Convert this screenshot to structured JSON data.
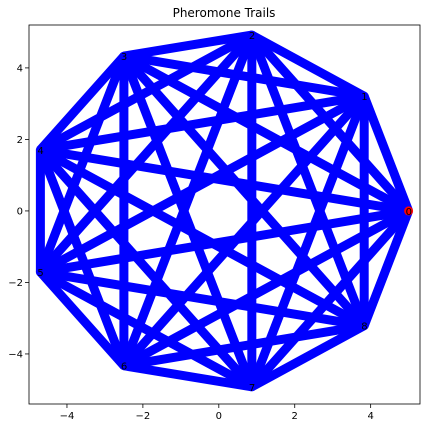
{
  "chart_data": {
    "type": "graph",
    "title": "Pheromone Trails",
    "xlabel": "",
    "ylabel": "",
    "xlim": [
      -5.0,
      5.3
    ],
    "ylim": [
      -5.4,
      5.2
    ],
    "xticks": [
      -4,
      -2,
      0,
      2,
      4
    ],
    "yticks": [
      -4,
      -2,
      0,
      2,
      4
    ],
    "xtick_labels": [
      "−4",
      "−2",
      "0",
      "2",
      "4"
    ],
    "ytick_labels": [
      "−4",
      "−2",
      "0",
      "2",
      "4"
    ],
    "grid": false,
    "edge_color": "#0000ff",
    "start_node_color": "#ff0000",
    "nodes": [
      {
        "label": "0",
        "x": 5.0,
        "y": 0.0
      },
      {
        "label": "1",
        "x": 3.83,
        "y": 3.21
      },
      {
        "label": "2",
        "x": 0.87,
        "y": 4.92
      },
      {
        "label": "3",
        "x": -2.5,
        "y": 4.33
      },
      {
        "label": "4",
        "x": -4.7,
        "y": 1.71
      },
      {
        "label": "5",
        "x": -4.7,
        "y": -1.71
      },
      {
        "label": "6",
        "x": -2.5,
        "y": -4.33
      },
      {
        "label": "7",
        "x": 0.87,
        "y": -4.92
      },
      {
        "label": "8",
        "x": 3.83,
        "y": -3.21
      }
    ],
    "edges": "complete"
  }
}
